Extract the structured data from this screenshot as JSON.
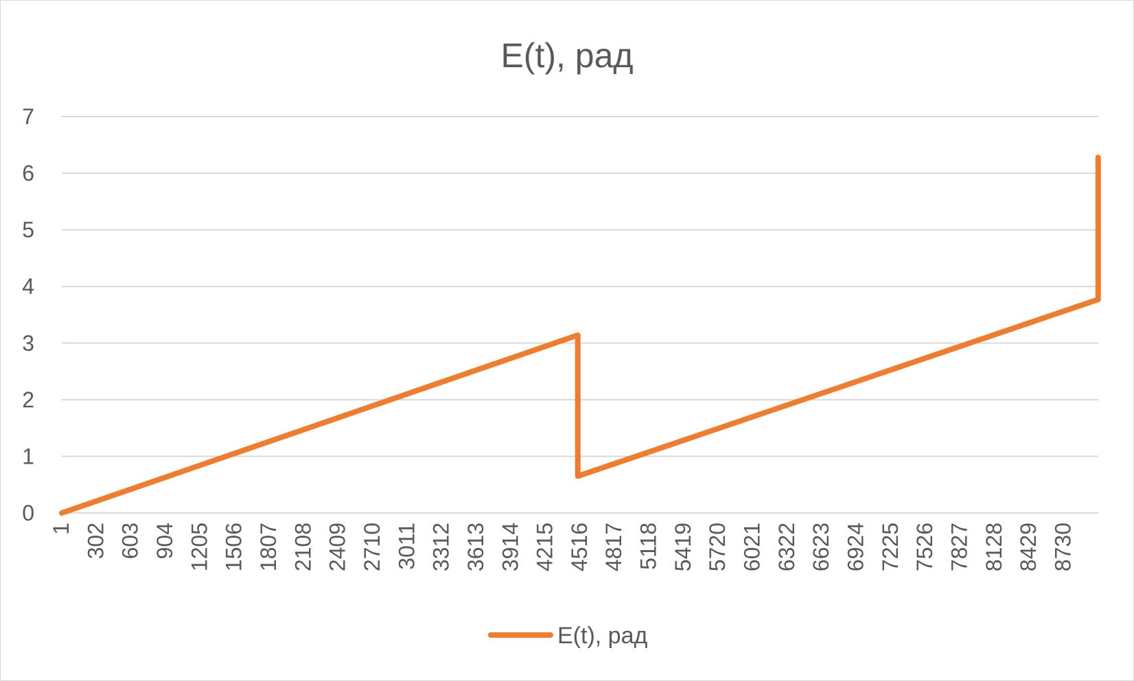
{
  "chart_data": {
    "type": "line",
    "title": "E(t), рад",
    "xlabel": "",
    "ylabel": "",
    "ylim": [
      0,
      7
    ],
    "yticks": [
      0,
      1,
      2,
      3,
      4,
      5,
      6,
      7
    ],
    "xlim": [
      1,
      9032
    ],
    "xticks": [
      "1",
      "302",
      "603",
      "904",
      "1205",
      "1506",
      "1807",
      "2108",
      "2409",
      "2710",
      "3011",
      "3312",
      "3613",
      "3914",
      "4215",
      "4516",
      "4817",
      "5118",
      "5419",
      "5720",
      "6021",
      "6322",
      "6623",
      "6924",
      "7225",
      "7526",
      "7827",
      "8128",
      "8429",
      "8730"
    ],
    "grid": true,
    "legend_position": "bottom",
    "series": [
      {
        "name": "E(t), рад",
        "color": "#ED7D31",
        "points": [
          [
            1,
            0
          ],
          [
            4497,
            3.14
          ],
          [
            4497,
            0.65
          ],
          [
            9031,
            3.77
          ],
          [
            9031,
            6.28
          ]
        ]
      }
    ]
  }
}
